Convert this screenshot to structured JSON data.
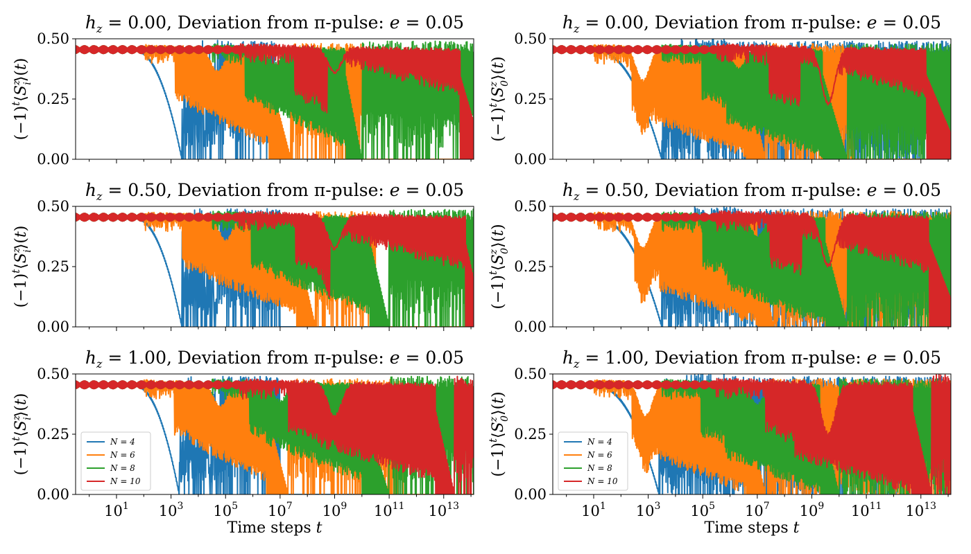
{
  "chart_data": [
    {
      "type": "line",
      "title": "h_z = 0.00, Deviation from π-pulse: e = 0.05",
      "title_parts": {
        "field": "h_z",
        "field_value": "0.00",
        "text": "Deviation from π-pulse:",
        "dev": "e",
        "dev_value": "0.05"
      },
      "ylabel": "(−1)^t⟨S_i^z⟩(t)",
      "xlabel": "",
      "xscale": "log",
      "xlim_log10": [
        -0.5,
        14.1
      ],
      "ylim": [
        0,
        0.5
      ],
      "yticks": [
        "0.00",
        "0.25",
        "0.50"
      ],
      "xticks_base": "10",
      "xticks_exp": [
        "1",
        "3",
        "5",
        "7",
        "9",
        "11",
        "13"
      ],
      "legend": false,
      "series": [
        {
          "name": "N = 4",
          "color": "#1f77b4",
          "flat_until_log": 1.6,
          "drop_log": 2.5,
          "revival_log": 3.3,
          "revival_end_log": 6.8,
          "band_bottom": 0.05,
          "upper_drop_log": 9.0,
          "noise": 0.05
        },
        {
          "name": "N = 6",
          "color": "#ff7f0e",
          "flat_until_log": 2.0,
          "dip_log": 4.7,
          "dip_depth": 0.35,
          "drop_log": 6.6,
          "revival_log": 7.4,
          "revival_end_log": 10.0,
          "band_bottom": 0.05,
          "noise": 0.04
        },
        {
          "name": "N = 8",
          "color": "#2ca02c",
          "flat_until_log": 4.5,
          "dip_log": 6.8,
          "dip_depth": 0.38,
          "drop_log": 9.4,
          "revival_log": 10.0,
          "revival_end_log": 14.1,
          "band_bottom": 0.05,
          "noise": 0.05
        },
        {
          "name": "N = 10",
          "color": "#d62728",
          "flat_until_log": 5.5,
          "dip_log": 9.0,
          "dip_depth": 0.34,
          "drop_log": 13.6,
          "revival_log": 14.5,
          "revival_end_log": 14.1,
          "band_bottom": 0.26,
          "noise": 0.05
        }
      ]
    },
    {
      "type": "line",
      "title": "h_z = 0.00, Deviation from π-pulse: e = 0.05",
      "title_parts": {
        "field": "h_z",
        "field_value": "0.00",
        "text": "Deviation from π-pulse:",
        "dev": "e",
        "dev_value": "0.05"
      },
      "ylabel": "(−1)^t⟨S_0^z⟩(t)",
      "xlabel": "",
      "xscale": "log",
      "xlim_log10": [
        -0.5,
        14.1
      ],
      "ylim": [
        0,
        0.5
      ],
      "yticks": [
        "0.00",
        "0.25",
        "0.50"
      ],
      "xticks_base": "10",
      "xticks_exp": [
        "1",
        "3",
        "5",
        "7",
        "9",
        "11",
        "13"
      ],
      "legend": false,
      "series": [
        {
          "name": "N = 4",
          "color": "#1f77b4",
          "flat_until_log": 1.0,
          "drop_log": 2.6,
          "revival_log": 3.2,
          "revival_end_log": 14.1,
          "band_bottom": 0.0,
          "upper_drop_log": 6.2,
          "noise": 0.06
        },
        {
          "name": "N = 6",
          "color": "#ff7f0e",
          "flat_until_log": 1.0,
          "dip_log": 2.8,
          "dip_depth": 0.3,
          "drop_log": 6.6,
          "revival_log": 7.3,
          "revival_end_log": 10.5,
          "band_bottom": 0.0,
          "noise": 0.04
        },
        {
          "name": "N = 8",
          "color": "#2ca02c",
          "flat_until_log": 3.5,
          "dip_log": 6.3,
          "dip_depth": 0.36,
          "drop_log": 9.4,
          "revival_log": 10.3,
          "revival_end_log": 14.1,
          "band_bottom": 0.0,
          "noise": 0.04
        },
        {
          "name": "N = 10",
          "color": "#d62728",
          "flat_until_log": 5.5,
          "dip_log": 9.6,
          "dip_depth": 0.2,
          "drop_log": 13.2,
          "revival_log": 14.5,
          "revival_end_log": 14.1,
          "band_bottom": 0.25,
          "noise": 0.05
        }
      ]
    },
    {
      "type": "line",
      "title": "h_z = 0.50, Deviation from π-pulse: e = 0.05",
      "title_parts": {
        "field": "h_z",
        "field_value": "0.50",
        "text": "Deviation from π-pulse:",
        "dev": "e",
        "dev_value": "0.05"
      },
      "ylabel": "(−1)^t⟨S_i^z⟩(t)",
      "xlabel": "",
      "xscale": "log",
      "xlim_log10": [
        -0.5,
        14.1
      ],
      "ylim": [
        0,
        0.5
      ],
      "yticks": [
        "0.00",
        "0.25",
        "0.50"
      ],
      "xticks_base": "10",
      "xticks_exp": [
        "1",
        "3",
        "5",
        "7",
        "9",
        "11",
        "13"
      ],
      "legend": false,
      "series": [
        {
          "name": "N = 4",
          "color": "#1f77b4",
          "flat_until_log": 1.6,
          "drop_log": 2.5,
          "revival_log": 3.3,
          "revival_end_log": 7.0,
          "band_bottom": 0.05,
          "upper_drop_log": 9.0,
          "noise": 0.05
        },
        {
          "name": "N = 6",
          "color": "#ff7f0e",
          "flat_until_log": 2.0,
          "dip_log": 5.0,
          "dip_depth": 0.34,
          "drop_log": 7.6,
          "revival_log": 8.3,
          "revival_end_log": 10.5,
          "band_bottom": 0.05,
          "noise": 0.04
        },
        {
          "name": "N = 8",
          "color": "#2ca02c",
          "flat_until_log": 4.5,
          "dip_log": 8.0,
          "dip_depth": 0.37,
          "drop_log": 10.3,
          "revival_log": 11.0,
          "revival_end_log": 14.1,
          "band_bottom": 0.05,
          "noise": 0.05
        },
        {
          "name": "N = 10",
          "color": "#d62728",
          "flat_until_log": 5.5,
          "dip_log": 9.0,
          "dip_depth": 0.3,
          "drop_log": 13.8,
          "revival_log": 14.5,
          "revival_end_log": 14.1,
          "band_bottom": 0.23,
          "noise": 0.05
        }
      ]
    },
    {
      "type": "line",
      "title": "h_z = 0.50, Deviation from π-pulse: e = 0.05",
      "title_parts": {
        "field": "h_z",
        "field_value": "0.50",
        "text": "Deviation from π-pulse:",
        "dev": "e",
        "dev_value": "0.05"
      },
      "ylabel": "(−1)^t⟨S_0^z⟩(t)",
      "xlabel": "",
      "xscale": "log",
      "xlim_log10": [
        -0.5,
        14.1
      ],
      "ylim": [
        0,
        0.5
      ],
      "yticks": [
        "0.00",
        "0.25",
        "0.50"
      ],
      "xticks_base": "10",
      "xticks_exp": [
        "1",
        "3",
        "5",
        "7",
        "9",
        "11",
        "13"
      ],
      "legend": false,
      "series": [
        {
          "name": "N = 4",
          "color": "#1f77b4",
          "flat_until_log": 1.0,
          "drop_log": 2.6,
          "revival_log": 3.2,
          "revival_end_log": 14.1,
          "band_bottom": 0.0,
          "upper_drop_log": 6.2,
          "noise": 0.06
        },
        {
          "name": "N = 6",
          "color": "#ff7f0e",
          "flat_until_log": 1.0,
          "dip_log": 2.8,
          "dip_depth": 0.3,
          "drop_log": 7.0,
          "revival_log": 7.6,
          "revival_end_log": 14.1,
          "band_bottom": 0.0,
          "noise": 0.04
        },
        {
          "name": "N = 8",
          "color": "#2ca02c",
          "flat_until_log": 3.5,
          "dip_log": 7.0,
          "dip_depth": 0.36,
          "drop_log": 9.5,
          "revival_log": 10.3,
          "revival_end_log": 14.1,
          "band_bottom": 0.0,
          "noise": 0.04
        },
        {
          "name": "N = 10",
          "color": "#d62728",
          "flat_until_log": 5.5,
          "dip_log": 9.6,
          "dip_depth": 0.22,
          "drop_log": 13.3,
          "revival_log": 14.5,
          "revival_end_log": 14.1,
          "band_bottom": 0.22,
          "noise": 0.06
        }
      ]
    },
    {
      "type": "line",
      "title": "h_z = 1.00, Deviation from π-pulse: e = 0.05",
      "title_parts": {
        "field": "h_z",
        "field_value": "1.00",
        "text": "Deviation from π-pulse:",
        "dev": "e",
        "dev_value": "0.05"
      },
      "ylabel": "(−1)^t⟨S_i^z⟩(t)",
      "xlabel": "Time steps t",
      "xlabel_parts": {
        "text": "Time steps",
        "var": "t"
      },
      "xscale": "log",
      "xlim_log10": [
        -0.5,
        14.1
      ],
      "ylim": [
        0,
        0.5
      ],
      "yticks": [
        "0.00",
        "0.25",
        "0.50"
      ],
      "xticks_base": "10",
      "xticks_exp": [
        "1",
        "3",
        "5",
        "7",
        "9",
        "11",
        "13"
      ],
      "legend": true,
      "legend_loc": "lower-left",
      "series": [
        {
          "name": "N = 4",
          "color": "#1f77b4",
          "flat_until_log": 1.6,
          "drop_log": 2.4,
          "revival_log": 3.3,
          "revival_end_log": 7.0,
          "band_bottom": 0.05,
          "upper_drop_log": 9.0,
          "noise": 0.05
        },
        {
          "name": "N = 6",
          "color": "#ff7f0e",
          "flat_until_log": 2.0,
          "dip_log": 4.8,
          "dip_depth": 0.35,
          "drop_log": 6.5,
          "revival_log": 7.3,
          "revival_end_log": 11.5,
          "band_bottom": 0.05,
          "noise": 0.04
        },
        {
          "name": "N = 8",
          "color": "#2ca02c",
          "flat_until_log": 4.5,
          "dip_log": 7.0,
          "dip_depth": 0.37,
          "drop_log": 10.0,
          "revival_log": 11.0,
          "revival_end_log": 14.1,
          "band_bottom": 0.05,
          "noise": 0.05
        },
        {
          "name": "N = 10",
          "color": "#d62728",
          "flat_until_log": 5.5,
          "dip_log": 9.0,
          "dip_depth": 0.3,
          "drop_log": 12.7,
          "revival_log": 13.4,
          "revival_end_log": 14.1,
          "band_bottom": 0.05,
          "noise": 0.05
        }
      ]
    },
    {
      "type": "line",
      "title": "h_z = 1.00, Deviation from π-pulse: e = 0.05",
      "title_parts": {
        "field": "h_z",
        "field_value": "1.00",
        "text": "Deviation from π-pulse:",
        "dev": "e",
        "dev_value": "0.05"
      },
      "ylabel": "(−1)^t⟨S_0^z⟩(t)",
      "xlabel": "Time steps t",
      "xlabel_parts": {
        "text": "Time steps",
        "var": "t"
      },
      "xscale": "log",
      "xlim_log10": [
        -0.5,
        14.1
      ],
      "ylim": [
        0,
        0.5
      ],
      "yticks": [
        "0.00",
        "0.25",
        "0.50"
      ],
      "xticks_base": "10",
      "xticks_exp": [
        "1",
        "3",
        "5",
        "7",
        "9",
        "11",
        "13"
      ],
      "legend": true,
      "legend_loc": "lower-left",
      "series": [
        {
          "name": "N = 4",
          "color": "#1f77b4",
          "flat_until_log": 1.0,
          "drop_log": 2.5,
          "revival_log": 3.2,
          "revival_end_log": 14.1,
          "band_bottom": 0.0,
          "upper_drop_log": 6.2,
          "noise": 0.06
        },
        {
          "name": "N = 6",
          "color": "#ff7f0e",
          "flat_until_log": 1.0,
          "dip_log": 2.9,
          "dip_depth": 0.3,
          "drop_log": 6.6,
          "revival_log": 7.3,
          "revival_end_log": 14.1,
          "band_bottom": 0.0,
          "noise": 0.04
        },
        {
          "name": "N = 8",
          "color": "#2ca02c",
          "flat_until_log": 3.5,
          "dip_log": 7.0,
          "dip_depth": 0.36,
          "drop_log": 9.3,
          "revival_log": 10.0,
          "revival_end_log": 14.1,
          "band_bottom": 0.0,
          "noise": 0.04
        },
        {
          "name": "N = 10",
          "color": "#d62728",
          "flat_until_log": 5.5,
          "dip_log": 9.6,
          "dip_depth": 0.22,
          "drop_log": 12.7,
          "revival_log": 13.4,
          "revival_end_log": 14.1,
          "band_bottom": 0.0,
          "noise": 0.06
        }
      ]
    }
  ]
}
